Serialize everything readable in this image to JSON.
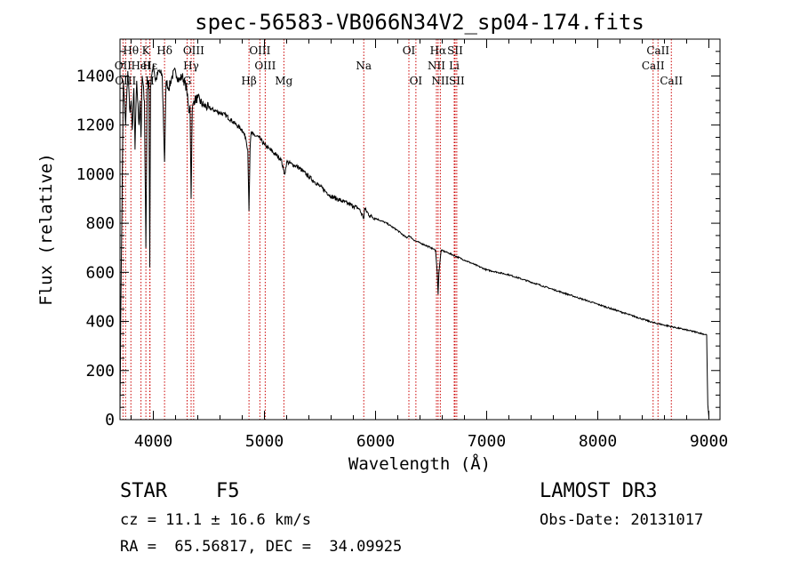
{
  "chart_data": {
    "type": "line",
    "title": "spec-56583-VB066N34V2_sp04-174.fits",
    "xlabel": "Wavelength (Å)",
    "ylabel": "Flux (relative)",
    "xlim": [
      3700,
      9100
    ],
    "ylim": [
      0,
      1550
    ],
    "xticks": [
      4000,
      5000,
      6000,
      7000,
      8000,
      9000
    ],
    "xtick_labels": [
      "4000",
      "5000",
      "6000",
      "7000",
      "8000",
      "9000"
    ],
    "yticks": [
      0,
      200,
      400,
      600,
      800,
      1000,
      1200,
      1400
    ],
    "ytick_labels": [
      "0",
      "200",
      "400",
      "600",
      "800",
      "1000",
      "1200",
      "1400"
    ],
    "series": [
      {
        "name": "flux",
        "x": [
          3700,
          3710,
          3730,
          3750,
          3770,
          3790,
          3800,
          3810,
          3825,
          3835,
          3850,
          3870,
          3880,
          3889,
          3900,
          3920,
          3933,
          3945,
          3960,
          3968,
          3975,
          3990,
          4000,
          4020,
          4050,
          4080,
          4101,
          4115,
          4140,
          4170,
          4200,
          4230,
          4260,
          4300,
          4320,
          4330,
          4340,
          4350,
          4365,
          4400,
          4450,
          4500,
          4550,
          4600,
          4650,
          4700,
          4750,
          4800,
          4830,
          4850,
          4861,
          4870,
          4880,
          4900,
          4950,
          5000,
          5050,
          5100,
          5150,
          5170,
          5183,
          5200,
          5250,
          5300,
          5350,
          5400,
          5450,
          5500,
          5550,
          5600,
          5650,
          5700,
          5750,
          5800,
          5850,
          5895,
          5900,
          5950,
          6000,
          6100,
          6200,
          6280,
          6300,
          6350,
          6400,
          6450,
          6500,
          6540,
          6555,
          6563,
          6570,
          6590,
          6650,
          6700,
          6800,
          6900,
          7000,
          7200,
          7400,
          7600,
          7800,
          8000,
          8200,
          8400,
          8500,
          8600,
          8700,
          8800,
          8900,
          8980,
          8990,
          9000
        ],
        "values": [
          20,
          580,
          1380,
          1200,
          1420,
          1250,
          1300,
          1180,
          1350,
          1100,
          1380,
          1200,
          1300,
          1150,
          1400,
          1300,
          700,
          1350,
          1380,
          620,
          1350,
          1420,
          1450,
          1380,
          1420,
          1400,
          1050,
          1380,
          1350,
          1400,
          1420,
          1380,
          1400,
          1350,
          1250,
          1280,
          900,
          1260,
          1300,
          1310,
          1280,
          1270,
          1260,
          1250,
          1240,
          1220,
          1200,
          1180,
          1150,
          1100,
          850,
          1100,
          1170,
          1160,
          1150,
          1120,
          1100,
          1080,
          1060,
          1020,
          1000,
          1050,
          1040,
          1030,
          1010,
          990,
          970,
          950,
          930,
          910,
          900,
          890,
          880,
          870,
          860,
          820,
          860,
          830,
          820,
          800,
          770,
          740,
          750,
          730,
          720,
          710,
          700,
          690,
          600,
          510,
          600,
          690,
          680,
          670,
          650,
          630,
          610,
          590,
          560,
          530,
          500,
          470,
          440,
          410,
          395,
          385,
          375,
          365,
          355,
          345,
          60,
          10
        ]
      }
    ],
    "lines": [
      {
        "label": "Hθ",
        "wl": 3798,
        "row": 1
      },
      {
        "label": "OII",
        "wl": 3727,
        "row": 2
      },
      {
        "label": "OIII",
        "wl": 3750,
        "row": 3
      },
      {
        "label": "HeI",
        "wl": 3889,
        "row": 2
      },
      {
        "label": "H",
        "wl": 3968,
        "row": 3
      },
      {
        "label": "K",
        "wl": 3933,
        "row": 1
      },
      {
        "label": "Hε",
        "wl": 3970,
        "row": 2
      },
      {
        "label": "Hδ",
        "wl": 4101,
        "row": 1
      },
      {
        "label": "OIII",
        "wl": 4363,
        "row": 1
      },
      {
        "label": "Hγ",
        "wl": 4340,
        "row": 2
      },
      {
        "label": "G",
        "wl": 4304,
        "row": 3
      },
      {
        "label": "Hβ",
        "wl": 4861,
        "row": 3
      },
      {
        "label": "OIII",
        "wl": 4959,
        "row": 1
      },
      {
        "label": "OIII",
        "wl": 5007,
        "row": 2
      },
      {
        "label": "Mg",
        "wl": 5175,
        "row": 3
      },
      {
        "label": "Na",
        "wl": 5894,
        "row": 2
      },
      {
        "label": "OI",
        "wl": 6300,
        "row": 1
      },
      {
        "label": "OI",
        "wl": 6363,
        "row": 3
      },
      {
        "label": "Hα",
        "wl": 6563,
        "row": 1
      },
      {
        "label": "NII",
        "wl": 6548,
        "row": 2
      },
      {
        "label": "NII",
        "wl": 6583,
        "row": 3
      },
      {
        "label": "SII",
        "wl": 6716,
        "row": 1
      },
      {
        "label": "Li",
        "wl": 6708,
        "row": 2
      },
      {
        "label": "SII",
        "wl": 6731,
        "row": 3
      },
      {
        "label": "CaII",
        "wl": 8542,
        "row": 1
      },
      {
        "label": "CaII",
        "wl": 8498,
        "row": 2
      },
      {
        "label": "CaII",
        "wl": 8662,
        "row": 3
      }
    ]
  },
  "info": {
    "object_type": "STAR",
    "subclass": "F5",
    "survey": "LAMOST DR3",
    "redshift": "cz = 11.1 ± 16.6 km/s",
    "obs_date": "Obs-Date: 20131017",
    "coords": "RA =  65.56817, DEC =  34.09925"
  }
}
